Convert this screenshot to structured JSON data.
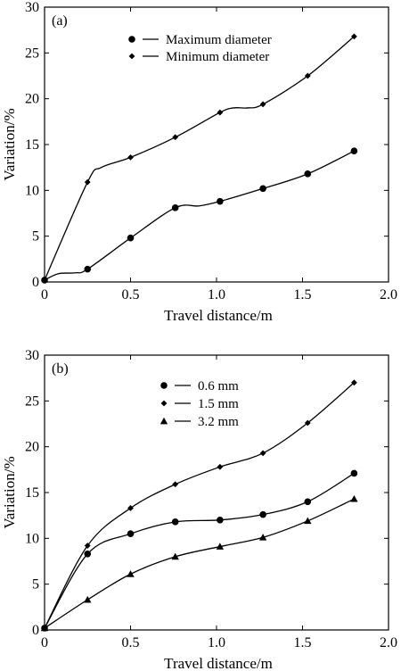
{
  "chart_data": [
    {
      "type": "line",
      "panel_label": "(a)",
      "xlabel": "Travel distance/m",
      "ylabel": "Variation/%",
      "xlim": [
        0,
        2.0
      ],
      "ylim": [
        0,
        30
      ],
      "xticks": [
        "0",
        "0.5",
        "1.0",
        "1.5",
        "2.0"
      ],
      "yticks": [
        "0",
        "5",
        "10",
        "15",
        "20",
        "25",
        "30"
      ],
      "xtick_values": [
        0,
        0.5,
        1.0,
        1.5,
        2.0
      ],
      "ytick_values": [
        0,
        5,
        10,
        15,
        20,
        25,
        30
      ],
      "legend_position": "top-center",
      "series": [
        {
          "name": "Maximum diameter",
          "marker": "circle",
          "x": [
            0,
            0.25,
            0.5,
            0.76,
            1.02,
            1.27,
            1.53,
            1.8
          ],
          "y": [
            0.2,
            1.4,
            4.8,
            8.1,
            8.8,
            10.2,
            11.8,
            14.3
          ],
          "curve": [
            [
              0,
              0.2
            ],
            [
              0.08,
              0.9
            ],
            [
              0.18,
              1.0
            ],
            [
              0.25,
              1.4
            ],
            [
              0.5,
              4.8
            ],
            [
              0.76,
              8.1
            ],
            [
              0.9,
              8.3
            ],
            [
              1.02,
              8.8
            ],
            [
              1.27,
              10.2
            ],
            [
              1.53,
              11.8
            ],
            [
              1.8,
              14.3
            ]
          ]
        },
        {
          "name": "Minimum diameter",
          "marker": "diamond",
          "x": [
            0,
            0.25,
            0.5,
            0.76,
            1.02,
            1.27,
            1.53,
            1.8
          ],
          "y": [
            0.2,
            10.9,
            13.6,
            15.8,
            18.5,
            19.4,
            22.5,
            26.8
          ],
          "curve": [
            [
              0,
              0.2
            ],
            [
              0.25,
              10.9
            ],
            [
              0.33,
              12.5
            ],
            [
              0.5,
              13.6
            ],
            [
              0.76,
              15.8
            ],
            [
              1.02,
              18.5
            ],
            [
              1.1,
              19.0
            ],
            [
              1.18,
              19.0
            ],
            [
              1.27,
              19.4
            ],
            [
              1.53,
              22.5
            ],
            [
              1.8,
              26.8
            ]
          ]
        }
      ]
    },
    {
      "type": "line",
      "panel_label": "(b)",
      "xlabel": "Travel distance/m",
      "ylabel": "Variation/%",
      "xlim": [
        0,
        2.0
      ],
      "ylim": [
        0,
        30
      ],
      "xticks": [
        "0",
        "0.5",
        "1.0",
        "1.5",
        "2.0"
      ],
      "yticks": [
        "0",
        "5",
        "10",
        "15",
        "20",
        "25",
        "30"
      ],
      "xtick_values": [
        0,
        0.5,
        1.0,
        1.5,
        2.0
      ],
      "ytick_values": [
        0,
        5,
        10,
        15,
        20,
        25,
        30
      ],
      "legend_position": "top-center",
      "series": [
        {
          "name": "0.6 mm",
          "marker": "circle",
          "x": [
            0,
            0.25,
            0.5,
            0.76,
            1.02,
            1.27,
            1.53,
            1.8
          ],
          "y": [
            0.2,
            8.3,
            10.5,
            11.8,
            12.0,
            12.6,
            14.0,
            17.1
          ],
          "curve": [
            [
              0,
              0.2
            ],
            [
              0.25,
              8.3
            ],
            [
              0.5,
              10.5
            ],
            [
              0.76,
              11.8
            ],
            [
              1.02,
              12.0
            ],
            [
              1.27,
              12.6
            ],
            [
              1.53,
              14.0
            ],
            [
              1.8,
              17.1
            ]
          ]
        },
        {
          "name": "1.5 mm",
          "marker": "diamond",
          "x": [
            0,
            0.25,
            0.5,
            0.76,
            1.02,
            1.27,
            1.53,
            1.8
          ],
          "y": [
            0.2,
            9.2,
            13.3,
            15.9,
            17.8,
            19.3,
            22.6,
            27.0
          ],
          "curve": [
            [
              0,
              0.2
            ],
            [
              0.25,
              9.2
            ],
            [
              0.5,
              13.3
            ],
            [
              0.76,
              15.9
            ],
            [
              1.02,
              17.8
            ],
            [
              1.27,
              19.3
            ],
            [
              1.53,
              22.6
            ],
            [
              1.8,
              27.0
            ]
          ]
        },
        {
          "name": "3.2 mm",
          "marker": "triangle",
          "x": [
            0,
            0.25,
            0.5,
            0.76,
            1.02,
            1.27,
            1.53,
            1.8
          ],
          "y": [
            0.2,
            3.3,
            6.1,
            8.0,
            9.1,
            10.1,
            11.9,
            14.3
          ],
          "curve": [
            [
              0,
              0.2
            ],
            [
              0.25,
              3.3
            ],
            [
              0.5,
              6.1
            ],
            [
              0.76,
              8.0
            ],
            [
              1.02,
              9.1
            ],
            [
              1.27,
              10.1
            ],
            [
              1.53,
              11.9
            ],
            [
              1.8,
              14.3
            ]
          ]
        }
      ]
    }
  ]
}
